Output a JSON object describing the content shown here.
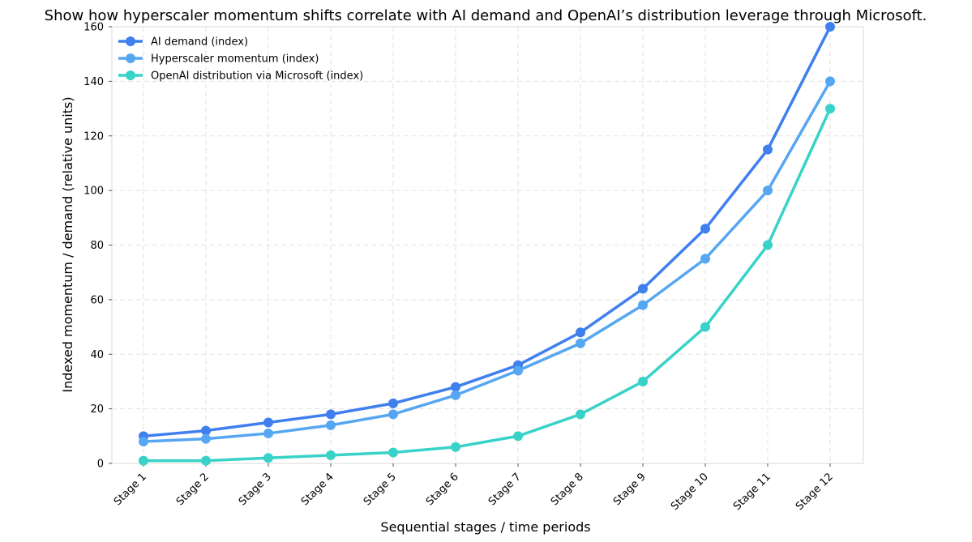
{
  "chart_data": {
    "type": "line",
    "title": "Show how hyperscaler momentum shifts correlate with AI demand and OpenAI’s distribution leverage through Microsoft.",
    "xlabel": "Sequential stages / time periods",
    "ylabel": "Indexed momentum / demand (relative units)",
    "categories": [
      "Stage 1",
      "Stage 2",
      "Stage 3",
      "Stage 4",
      "Stage 5",
      "Stage 6",
      "Stage 7",
      "Stage 8",
      "Stage 9",
      "Stage 10",
      "Stage 11",
      "Stage 12"
    ],
    "ylim": [
      0,
      160
    ],
    "yticks": [
      0,
      20,
      40,
      60,
      80,
      100,
      120,
      140,
      160
    ],
    "grid": true,
    "legend_position": "top-left",
    "series": [
      {
        "name": "AI demand (index)",
        "color": "#3f7fee",
        "values": [
          10,
          12,
          15,
          18,
          22,
          28,
          36,
          48,
          64,
          86,
          115,
          160
        ]
      },
      {
        "name": "Hyperscaler momentum (index)",
        "color": "#56a6f2",
        "values": [
          8,
          9,
          11,
          14,
          18,
          25,
          34,
          44,
          58,
          75,
          100,
          140
        ]
      },
      {
        "name": "OpenAI distribution via Microsoft (index)",
        "color": "#38d2c8",
        "values": [
          1,
          1,
          2,
          3,
          4,
          6,
          10,
          18,
          30,
          50,
          80,
          130
        ]
      }
    ]
  }
}
